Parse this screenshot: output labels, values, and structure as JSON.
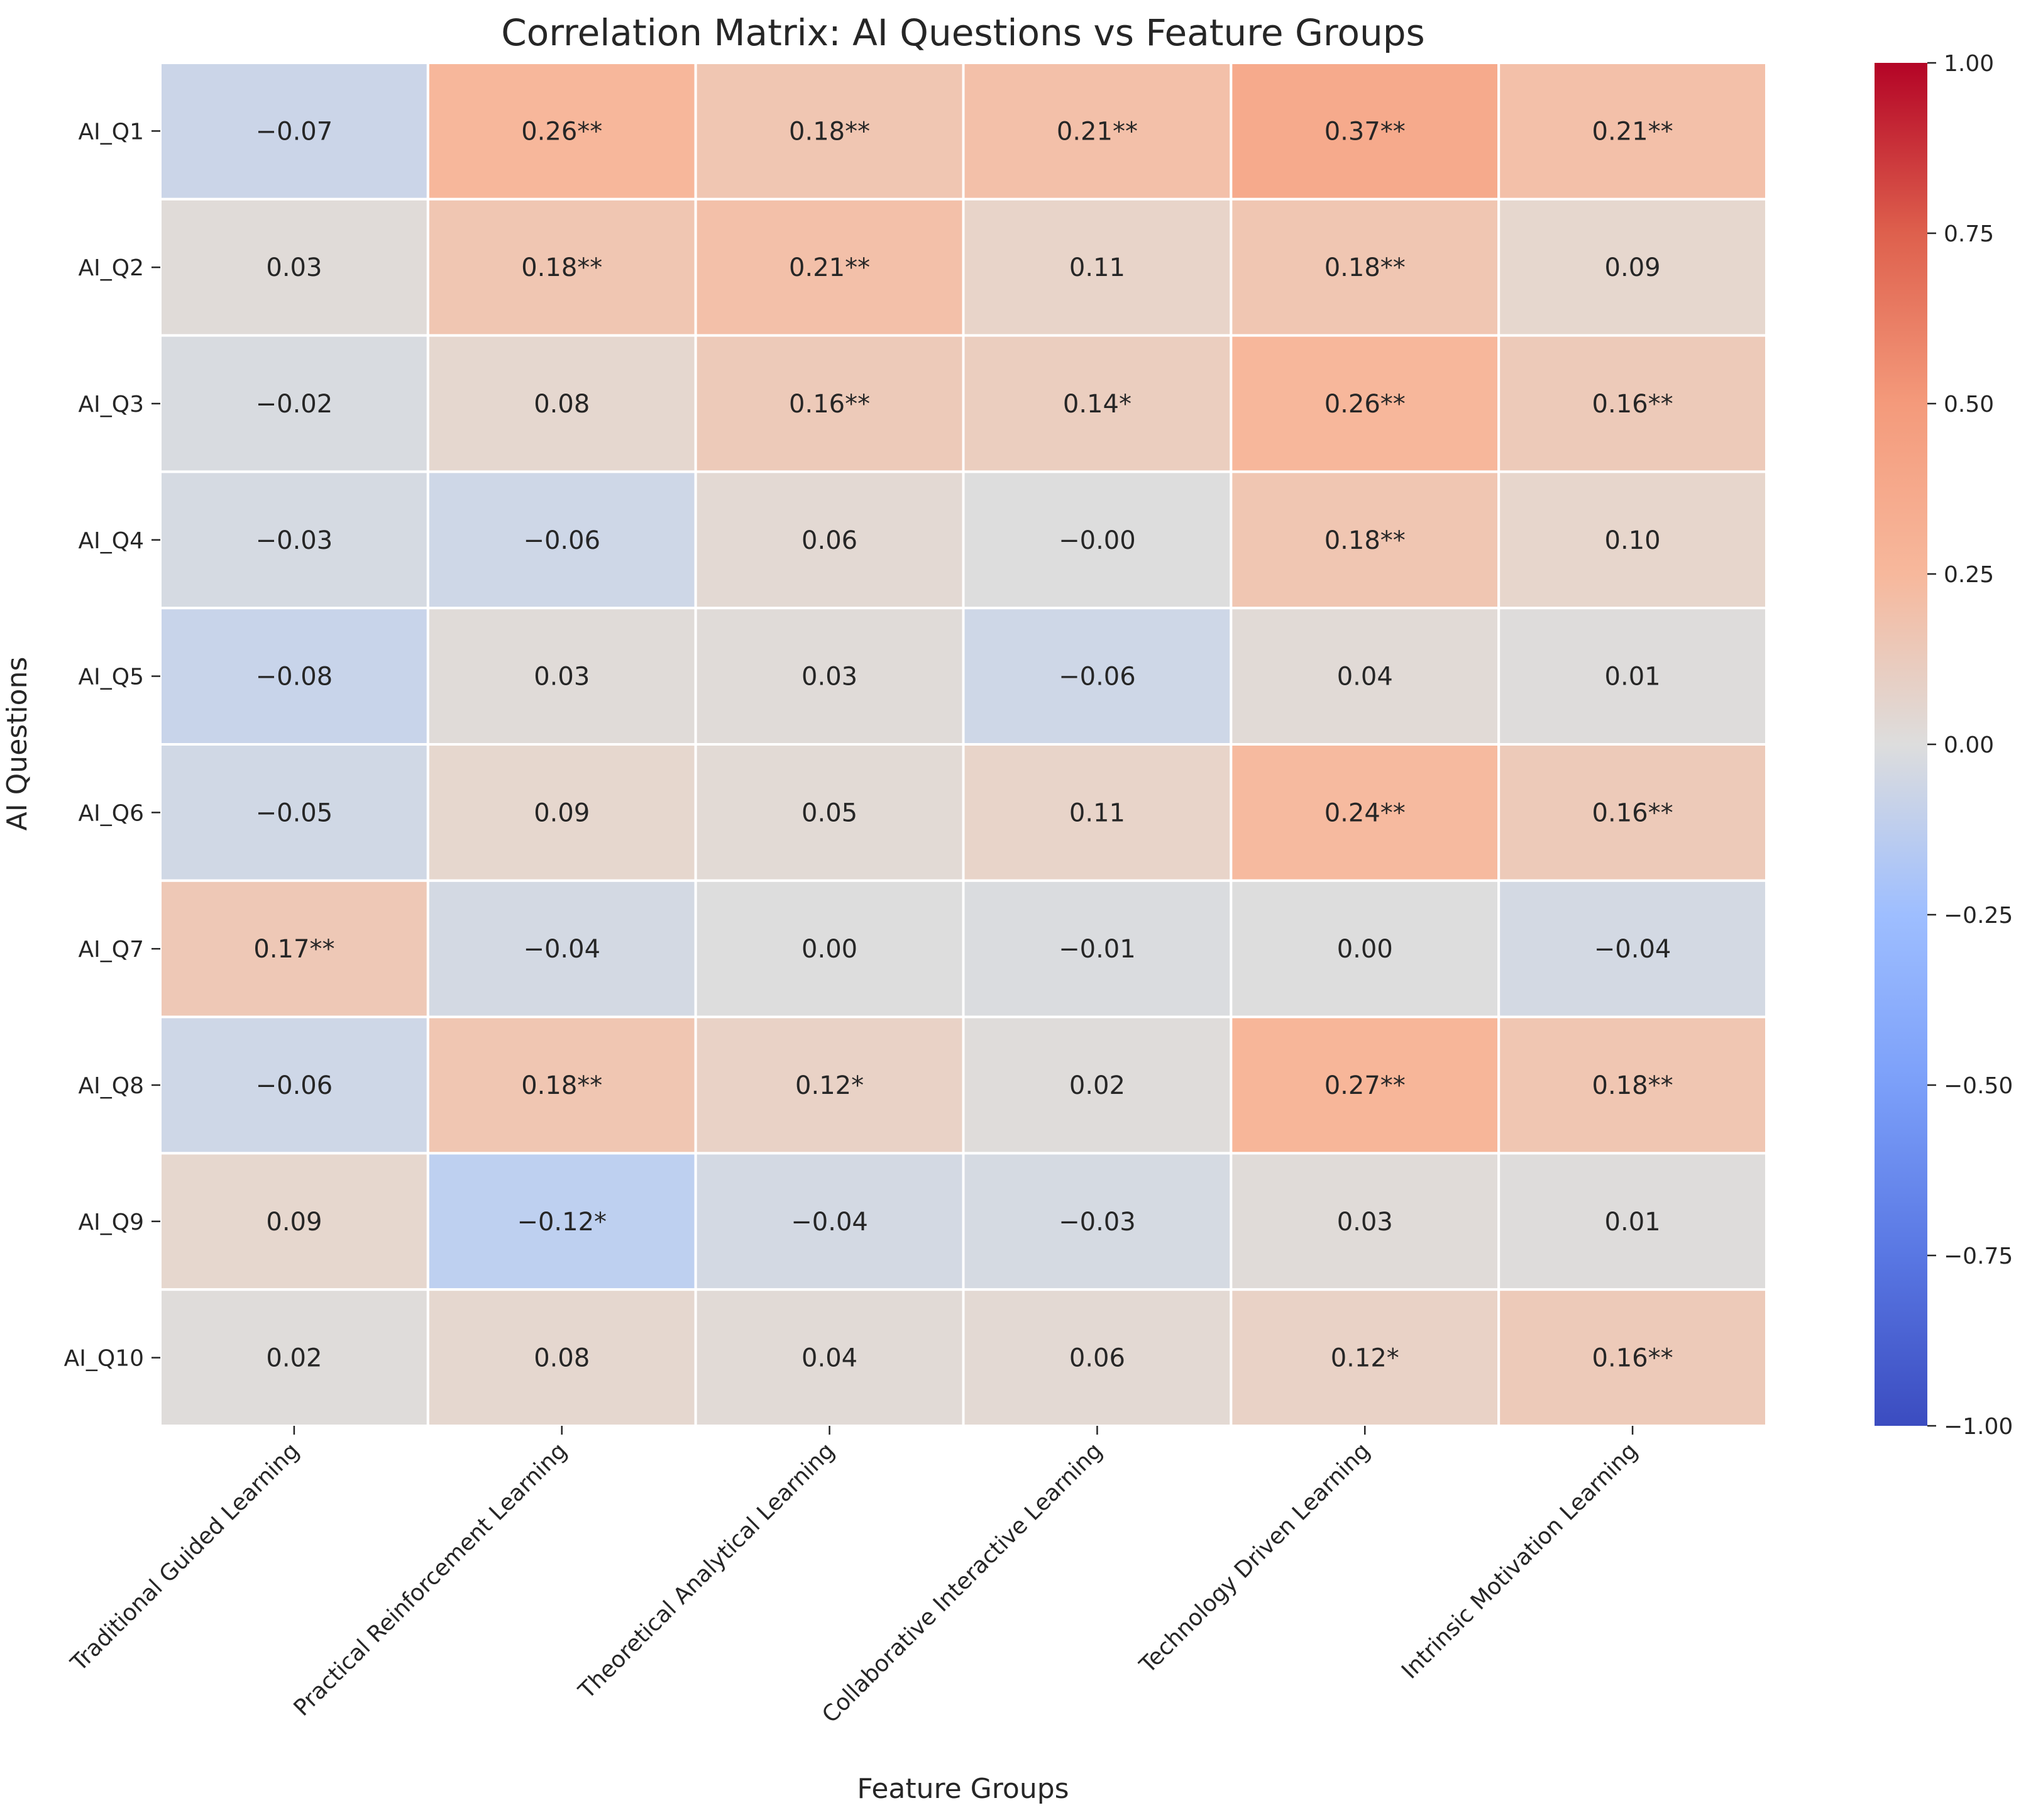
{
  "chart_data": {
    "type": "heatmap",
    "title": "Correlation Matrix: AI Questions vs Feature Groups",
    "xlabel": "Feature Groups",
    "ylabel": "AI Questions",
    "columns": [
      "Traditional Guided Learning",
      "Practical Reinforcement Learning",
      "Theoretical Analytical Learning",
      "Collaborative Interactive Learning",
      "Technology Driven Learning",
      "Intrinsic Motivation Learning"
    ],
    "rows": [
      "AI_Q1",
      "AI_Q2",
      "AI_Q3",
      "AI_Q4",
      "AI_Q5",
      "AI_Q6",
      "AI_Q7",
      "AI_Q8",
      "AI_Q9",
      "AI_Q10"
    ],
    "values": [
      [
        -0.07,
        0.26,
        0.18,
        0.21,
        0.37,
        0.21
      ],
      [
        0.03,
        0.18,
        0.21,
        0.11,
        0.18,
        0.09
      ],
      [
        -0.02,
        0.08,
        0.16,
        0.14,
        0.26,
        0.16
      ],
      [
        -0.03,
        -0.06,
        0.06,
        -0.0,
        0.18,
        0.1
      ],
      [
        -0.08,
        0.03,
        0.03,
        -0.06,
        0.04,
        0.01
      ],
      [
        -0.05,
        0.09,
        0.05,
        0.11,
        0.24,
        0.16
      ],
      [
        0.17,
        -0.04,
        0.0,
        -0.01,
        0.0,
        -0.04
      ],
      [
        -0.06,
        0.18,
        0.12,
        0.02,
        0.27,
        0.18
      ],
      [
        0.09,
        -0.12,
        -0.04,
        -0.03,
        0.03,
        0.01
      ],
      [
        0.02,
        0.08,
        0.04,
        0.06,
        0.12,
        0.16
      ]
    ],
    "annotations": [
      [
        "−0.07",
        "0.26**",
        "0.18**",
        "0.21**",
        "0.37**",
        "0.21**"
      ],
      [
        "0.03",
        "0.18**",
        "0.21**",
        "0.11",
        "0.18**",
        "0.09"
      ],
      [
        "−0.02",
        "0.08",
        "0.16**",
        "0.14*",
        "0.26**",
        "0.16**"
      ],
      [
        "−0.03",
        "−0.06",
        "0.06",
        "−0.00",
        "0.18**",
        "0.10"
      ],
      [
        "−0.08",
        "0.03",
        "0.03",
        "−0.06",
        "0.04",
        "0.01"
      ],
      [
        "−0.05",
        "0.09",
        "0.05",
        "0.11",
        "0.24**",
        "0.16**"
      ],
      [
        "0.17**",
        "−0.04",
        "0.00",
        "−0.01",
        "0.00",
        "−0.04"
      ],
      [
        "−0.06",
        "0.18**",
        "0.12*",
        "0.02",
        "0.27**",
        "0.18**"
      ],
      [
        "0.09",
        "−0.12*",
        "−0.04",
        "−0.03",
        "0.03",
        "0.01"
      ],
      [
        "0.02",
        "0.08",
        "0.04",
        "0.06",
        "0.12*",
        "0.16**"
      ]
    ],
    "colormap": "coolwarm",
    "vmin": -1.0,
    "vmax": 1.0,
    "colorbar_ticks": [
      1.0,
      0.75,
      0.5,
      0.25,
      0.0,
      -0.25,
      -0.5,
      -0.75,
      -1.0
    ],
    "colorbar_tick_labels": [
      "1.00",
      "0.75",
      "0.50",
      "0.25",
      "0.00",
      "−0.25",
      "−0.50",
      "−0.75",
      "−1.00"
    ]
  }
}
